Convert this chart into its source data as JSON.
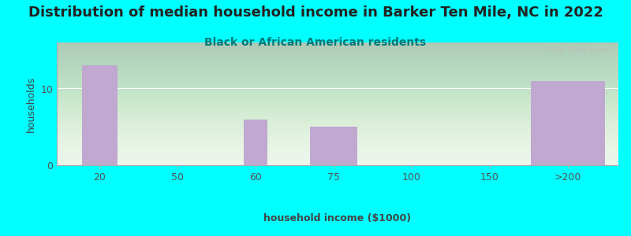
{
  "title": "Distribution of median household income in Barker Ten Mile, NC in 2022",
  "subtitle": "Black or African American residents",
  "xlabel": "household income ($1000)",
  "ylabel": "households",
  "bg_outer": "#00FFFF",
  "bg_plot_top": "#e8f5e8",
  "bg_plot_bottom": "#f5fff5",
  "bar_color": "#c0a8d0",
  "categories": [
    "20",
    "50",
    "60",
    "75",
    "100",
    "150",
    ">200"
  ],
  "values": [
    13,
    0,
    6,
    5,
    0,
    0,
    11
  ],
  "ylim": [
    0,
    16
  ],
  "yticks": [
    0,
    10
  ],
  "watermark": "City-Data.com",
  "title_fontsize": 13,
  "subtitle_fontsize": 10,
  "axis_label_fontsize": 9,
  "tick_fontsize": 9,
  "title_color": "#222222",
  "subtitle_color": "#007878",
  "tick_color": "#555555",
  "xlabel_color": "#444444",
  "ylabel_color": "#444444"
}
